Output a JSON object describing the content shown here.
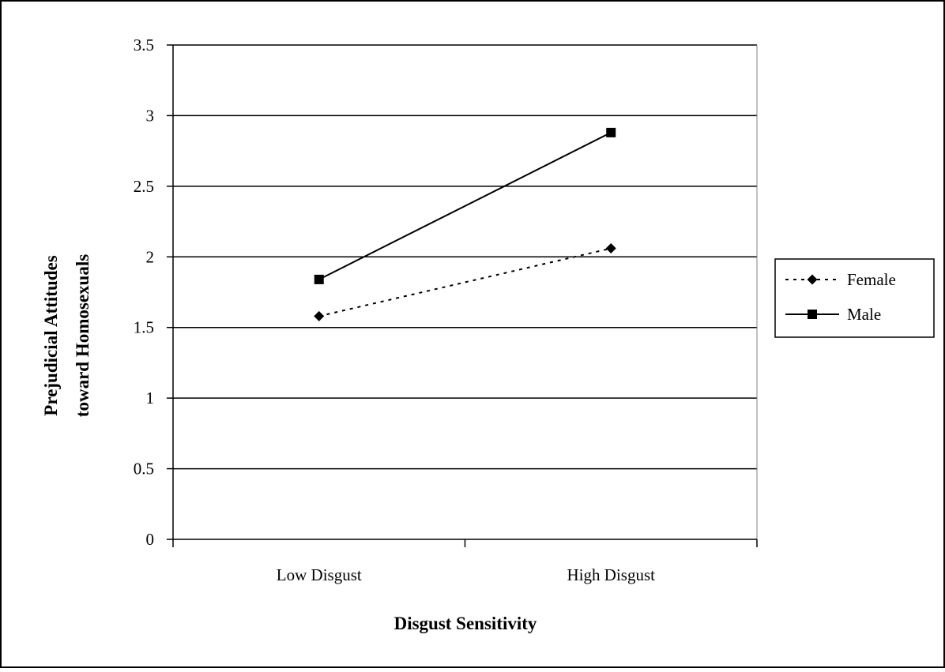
{
  "chart_data": {
    "type": "line",
    "categories": [
      "Low Disgust",
      "High Disgust"
    ],
    "xlabel": "Disgust Sensitivity",
    "ylabel_lines": [
      "Prejudicial Attitudes",
      "toward Homosexuals"
    ],
    "ylim": [
      0,
      3.5
    ],
    "yticks": [
      "0",
      "0.5",
      "1",
      "1.5",
      "2",
      "2.5",
      "3",
      "3.5"
    ],
    "grid": true,
    "legend_position": "right",
    "series": [
      {
        "name": "Female",
        "values": [
          1.58,
          2.06
        ],
        "line_style": "dotted",
        "marker": "diamond",
        "color": "#000000"
      },
      {
        "name": "Male",
        "values": [
          1.84,
          2.88
        ],
        "line_style": "solid",
        "marker": "square",
        "color": "#000000"
      }
    ]
  }
}
